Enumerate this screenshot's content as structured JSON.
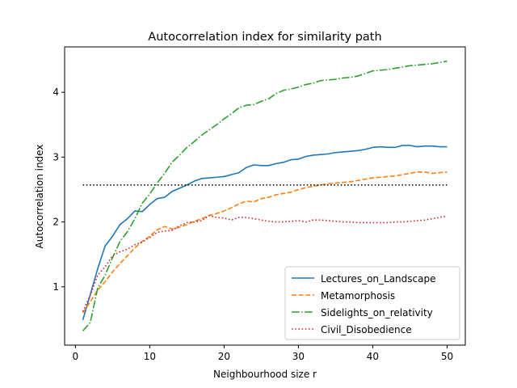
{
  "chart_data": {
    "type": "line",
    "title": "Autocorrelation index for similarity path",
    "xlabel": "Neighbourhood size r",
    "ylabel": "Autocorrelation index",
    "xlim": [
      -1.45,
      52.45
    ],
    "ylim": [
      0.1,
      4.7
    ],
    "xticks": [
      0,
      10,
      20,
      30,
      40,
      50
    ],
    "yticks": [
      1,
      2,
      3,
      4
    ],
    "legend_position": "lower-right",
    "x": [
      1,
      2,
      3,
      4,
      5,
      6,
      7,
      8,
      9,
      10,
      11,
      12,
      13,
      14,
      15,
      16,
      17,
      18,
      19,
      20,
      21,
      22,
      23,
      24,
      25,
      26,
      27,
      28,
      29,
      30,
      31,
      32,
      33,
      34,
      35,
      36,
      37,
      38,
      39,
      40,
      41,
      42,
      43,
      44,
      45,
      46,
      47,
      48,
      49,
      50
    ],
    "reference_line": {
      "y": 2.57,
      "x_range": [
        1,
        50
      ],
      "color": "#000000"
    },
    "series": [
      {
        "name": "Lectures_on_Landscape",
        "color": "#1f77b4",
        "dash": "solid",
        "values": [
          0.49,
          0.88,
          1.28,
          1.63,
          1.78,
          1.96,
          2.05,
          2.17,
          2.16,
          2.27,
          2.36,
          2.38,
          2.47,
          2.52,
          2.57,
          2.63,
          2.67,
          2.68,
          2.69,
          2.7,
          2.73,
          2.76,
          2.84,
          2.88,
          2.87,
          2.87,
          2.9,
          2.92,
          2.96,
          2.97,
          3.01,
          3.03,
          3.04,
          3.05,
          3.07,
          3.08,
          3.09,
          3.1,
          3.12,
          3.15,
          3.16,
          3.15,
          3.15,
          3.18,
          3.18,
          3.16,
          3.17,
          3.17,
          3.16,
          3.16
        ]
      },
      {
        "name": "Metamorphosis",
        "color": "#ff7f0e",
        "dash": "dashed",
        "values": [
          0.6,
          0.77,
          0.95,
          1.08,
          1.23,
          1.36,
          1.48,
          1.6,
          1.7,
          1.78,
          1.88,
          1.93,
          1.89,
          1.92,
          1.96,
          2.01,
          2.05,
          2.1,
          2.13,
          2.17,
          2.22,
          2.28,
          2.32,
          2.31,
          2.36,
          2.38,
          2.42,
          2.44,
          2.46,
          2.5,
          2.53,
          2.55,
          2.57,
          2.59,
          2.6,
          2.61,
          2.62,
          2.64,
          2.66,
          2.68,
          2.69,
          2.7,
          2.71,
          2.73,
          2.75,
          2.77,
          2.77,
          2.75,
          2.76,
          2.77
        ]
      },
      {
        "name": "Sidelights_on_relativity",
        "color": "#2ca02c",
        "dash": "dashdot",
        "values": [
          0.32,
          0.45,
          0.98,
          1.18,
          1.45,
          1.7,
          1.85,
          2.05,
          2.29,
          2.43,
          2.6,
          2.75,
          2.92,
          3.03,
          3.15,
          3.24,
          3.34,
          3.42,
          3.5,
          3.59,
          3.67,
          3.76,
          3.8,
          3.81,
          3.86,
          3.9,
          3.98,
          4.03,
          4.05,
          4.08,
          4.12,
          4.14,
          4.18,
          4.19,
          4.2,
          4.22,
          4.23,
          4.25,
          4.29,
          4.33,
          4.34,
          4.35,
          4.37,
          4.39,
          4.41,
          4.42,
          4.43,
          4.44,
          4.46,
          4.48
        ]
      },
      {
        "name": "Civil_Disobedience",
        "color": "#d62728",
        "dash": "dotted",
        "values": [
          0.62,
          0.87,
          1.18,
          1.31,
          1.48,
          1.54,
          1.58,
          1.65,
          1.69,
          1.76,
          1.84,
          1.86,
          1.87,
          1.94,
          1.99,
          2.0,
          2.02,
          2.1,
          2.07,
          2.06,
          2.03,
          2.07,
          2.07,
          2.05,
          2.03,
          2.01,
          2.0,
          2.0,
          2.01,
          2.02,
          2.0,
          2.03,
          2.03,
          2.02,
          2.01,
          2.0,
          2.0,
          1.99,
          1.99,
          1.99,
          1.99,
          1.99,
          2.0,
          2.0,
          2.01,
          2.02,
          2.03,
          2.05,
          2.07,
          2.09
        ]
      }
    ]
  }
}
